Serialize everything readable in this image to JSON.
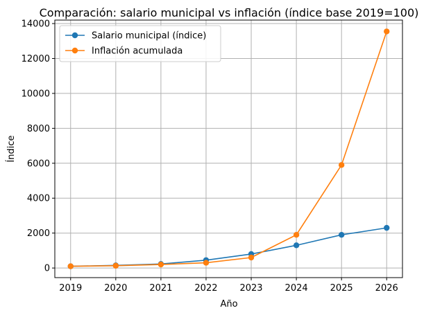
{
  "chart_data": {
    "type": "line",
    "title": "Comparación: salario municipal vs inflación (índice base 2019=100)",
    "xlabel": "Año",
    "ylabel": "Índice",
    "categories": [
      "2019",
      "2020",
      "2021",
      "2022",
      "2023",
      "2024",
      "2025",
      "2026"
    ],
    "x": [
      2019,
      2020,
      2021,
      2022,
      2023,
      2024,
      2025,
      2026
    ],
    "xlim": [
      2018.65,
      2026.35
    ],
    "ylim": [
      -550,
      14200
    ],
    "yticks": [
      0,
      2000,
      4000,
      6000,
      8000,
      10000,
      12000,
      14000
    ],
    "ytick_labels": [
      "0",
      "2000",
      "4000",
      "6000",
      "8000",
      "10000",
      "12000",
      "14000"
    ],
    "grid": true,
    "legend_position": "top-left",
    "series": [
      {
        "name": "Salario municipal (índice)",
        "color": "#1f77b4",
        "values": [
          100,
          150,
          230,
          450,
          800,
          1300,
          1900,
          2300
        ]
      },
      {
        "name": "Inflación acumulada",
        "color": "#ff7f0e",
        "values": [
          100,
          130,
          200,
          300,
          600,
          1900,
          5900,
          13550
        ]
      }
    ]
  }
}
